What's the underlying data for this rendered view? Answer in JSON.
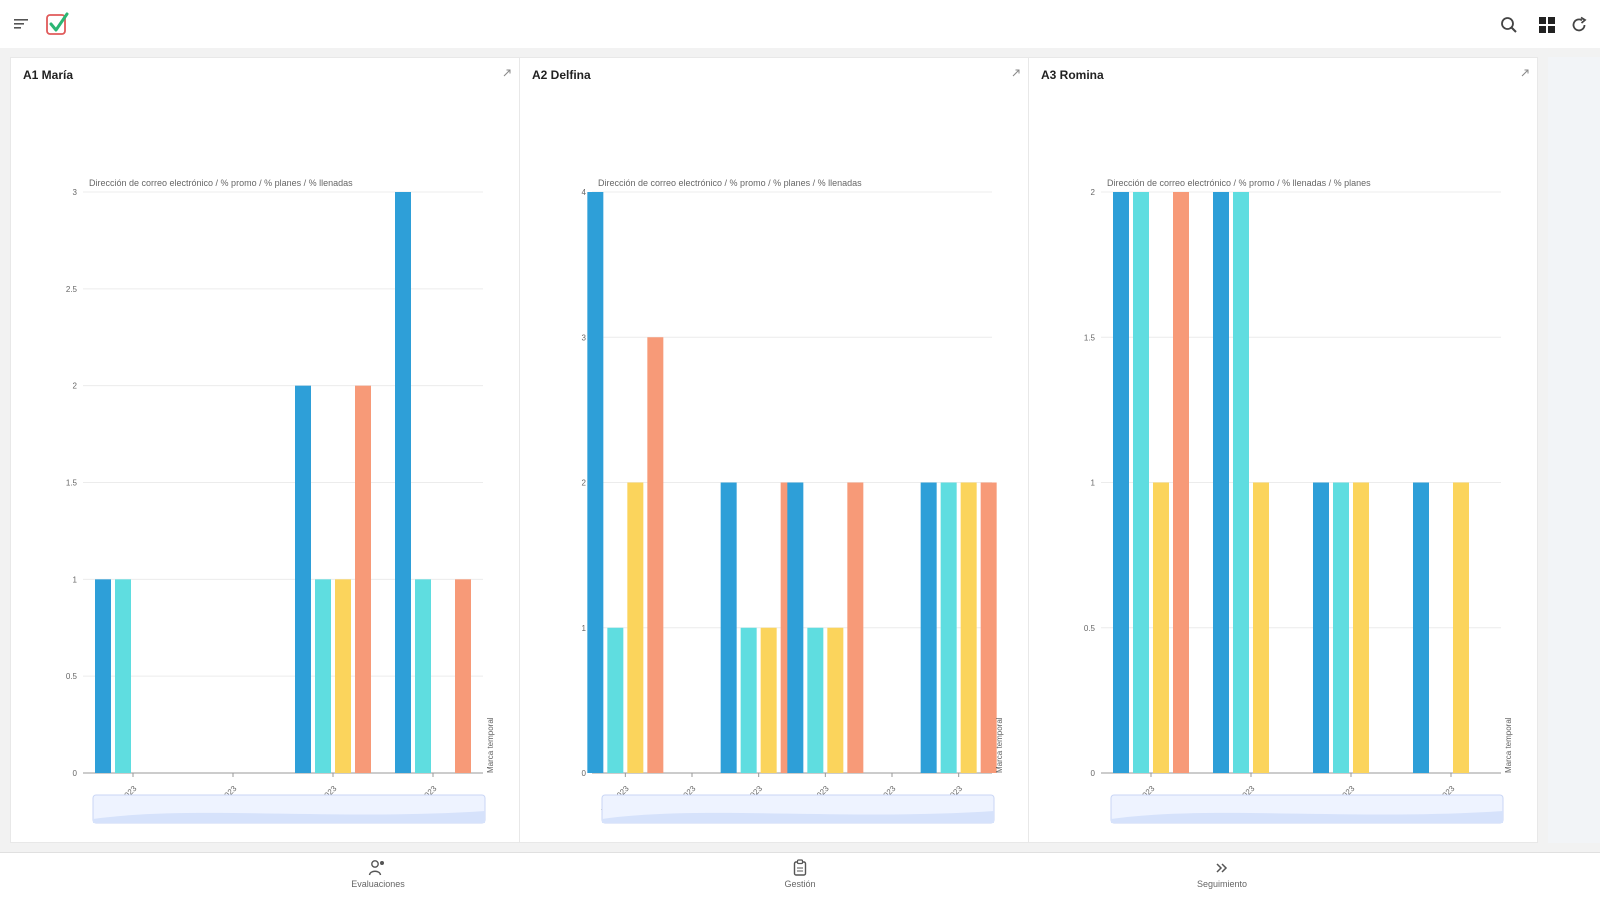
{
  "topbar": {
    "icons": [
      "menu-icon",
      "app-logo-check",
      "search-icon",
      "grid-icon",
      "refresh-icon"
    ],
    "logo_color": "#2bb673"
  },
  "cards": [
    {
      "title": "A1 María",
      "chart_data": {
        "type": "bar",
        "subtitle": "Dirección de correo electrónico / % promo / % planes / % llenadas",
        "categories": [
          "May 2023",
          "Jun 2023",
          "Jul 2023",
          "Aug 2023"
        ],
        "side_label": "Marca temporal",
        "ylim": [
          0,
          3
        ],
        "yticks": [
          "0",
          "0.5",
          "1",
          "1.5",
          "2",
          "2.5",
          "3"
        ],
        "series": [
          {
            "color": "#2e9fd8",
            "values": [
              1,
              0,
              2,
              3
            ]
          },
          {
            "color": "#5fdde0",
            "values": [
              1,
              0,
              1,
              1
            ]
          },
          {
            "color": "#fbd45c",
            "values": [
              0,
              0,
              1,
              0
            ]
          },
          {
            "color": "#f79a78",
            "values": [
              0,
              0,
              2,
              1
            ]
          }
        ]
      }
    },
    {
      "title": "A2 Delfina",
      "chart_data": {
        "type": "bar",
        "subtitle": "Dirección de correo electrónico / % promo / % planes / % llenadas",
        "categories": [
          "May 2023",
          "Jun 2023",
          "Jul 2023",
          "Aug 2023",
          "Sep 2023",
          "Oct 2023"
        ],
        "side_label": "Marca temporal",
        "ylim": [
          0,
          4
        ],
        "yticks": [
          "0",
          "1",
          "2",
          "3",
          "4"
        ],
        "series": [
          {
            "color": "#2e9fd8",
            "values": [
              4,
              0,
              2,
              2,
              0,
              2
            ]
          },
          {
            "color": "#5fdde0",
            "values": [
              1,
              0,
              1,
              1,
              0,
              2
            ]
          },
          {
            "color": "#fbd45c",
            "values": [
              2,
              0,
              1,
              1,
              0,
              2
            ]
          },
          {
            "color": "#f79a78",
            "values": [
              3,
              0,
              2,
              2,
              0,
              2
            ]
          }
        ]
      }
    },
    {
      "title": "A3 Romina",
      "chart_data": {
        "type": "bar",
        "subtitle": "Dirección de correo electrónico / % promo / % llenadas / % planes",
        "categories": [
          "May 2023",
          "Jun 2023",
          "Jul 2023",
          "Aug 2023"
        ],
        "side_label": "Marca temporal",
        "ylim": [
          0,
          2
        ],
        "yticks": [
          "0",
          "0.5",
          "1",
          "1.5",
          "2"
        ],
        "series": [
          {
            "color": "#2e9fd8",
            "values": [
              2,
              2,
              1,
              1
            ]
          },
          {
            "color": "#5fdde0",
            "values": [
              2,
              2,
              1,
              0
            ]
          },
          {
            "color": "#fbd45c",
            "values": [
              1,
              1,
              1,
              1
            ]
          },
          {
            "color": "#f79a78",
            "values": [
              2,
              0,
              0,
              0
            ]
          }
        ]
      }
    }
  ],
  "bottomnav": [
    {
      "label": "Evaluaciones",
      "icon": "users-add-icon"
    },
    {
      "label": "Gestión",
      "icon": "clipboard-icon"
    },
    {
      "label": "Seguimiento",
      "icon": "double-chevron-right-icon"
    }
  ]
}
